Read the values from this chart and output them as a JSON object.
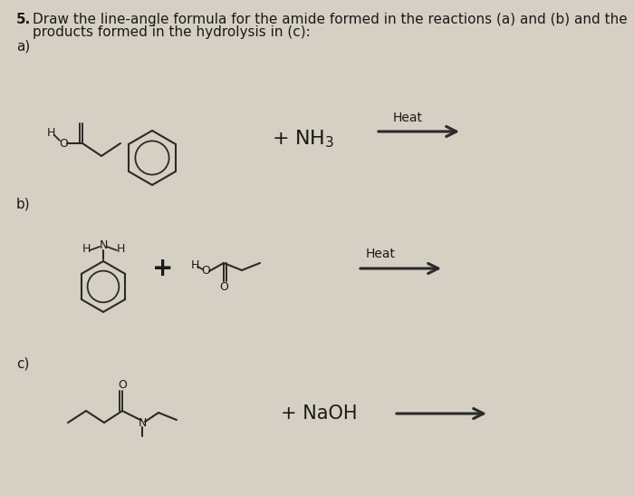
{
  "background_color": "#d6d0c4",
  "text_color": "#1a1a1a",
  "line_color": "#2a2a2a",
  "title_bold": "5.",
  "title_rest": " Draw the line-angle formula for the amide formed in the reactions (a) and (b) and the",
  "title_line2": "     products formed in the hydrolysis in (c):",
  "label_a": "a)",
  "label_b": "b)",
  "label_c": "c)",
  "heat_a": "Heat",
  "heat_b": "Heat",
  "plus_nh3": "+ NH",
  "nh3_sub": "3",
  "plus_naoh": "+ NaOH",
  "font_size_title": 11,
  "font_size_label": 11,
  "font_size_chem_text": 10,
  "font_size_plus_nh3": 16,
  "font_size_naoh": 15
}
